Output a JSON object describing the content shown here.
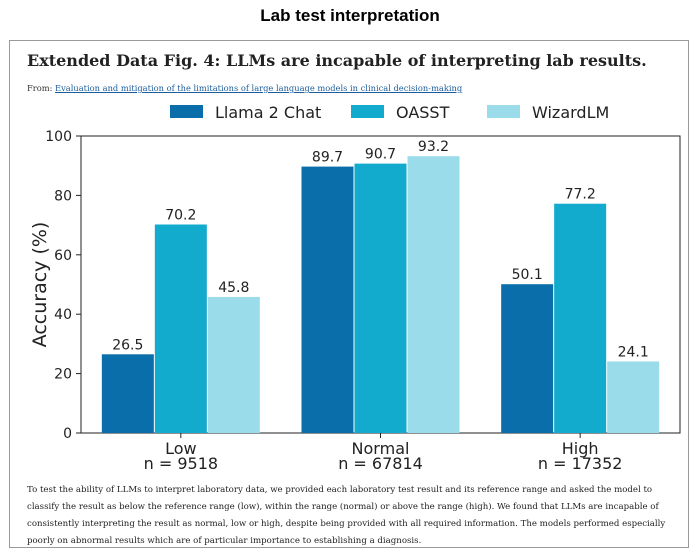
{
  "outer_title": "Lab test interpretation",
  "figure": {
    "title": "Extended Data Fig. 4: LLMs are incapable of interpreting lab results.",
    "from_prefix": "From: ",
    "from_link": "Evaluation and mitigation of the limitations of large language models in clinical decision-making",
    "caption": "To test the ability of LLMs to interpret laboratory data, we provided each laboratory test result and its reference range and asked the model to classify the result as below the reference range (low), within the range (normal) or above the range (high). We found that LLMs are incapable of consistently interpreting the result as normal, low or high, despite being provided with all required information. The models performed especially poorly on abnormal results which are of particular importance to establishing a diagnosis."
  },
  "colors": {
    "Llama 2 Chat": "#0a6eaa",
    "OASST": "#12aacd",
    "WizardLM": "#9bdcea"
  },
  "chart_data": {
    "type": "bar",
    "categories": [
      "Low",
      "Normal",
      "High"
    ],
    "category_sublabels": [
      "n = 9518",
      "n = 67814",
      "n = 17352"
    ],
    "series": [
      {
        "name": "Llama 2 Chat",
        "values": [
          26.5,
          89.7,
          50.1
        ]
      },
      {
        "name": "OASST",
        "values": [
          70.2,
          90.7,
          77.2
        ]
      },
      {
        "name": "WizardLM",
        "values": [
          45.8,
          93.2,
          24.1
        ]
      }
    ],
    "ylabel": "Accuracy (%)",
    "xlabel": "",
    "ylim": [
      0,
      100
    ],
    "yticks": [
      0,
      20,
      40,
      60,
      80,
      100
    ],
    "legend": "top",
    "grid": false
  }
}
